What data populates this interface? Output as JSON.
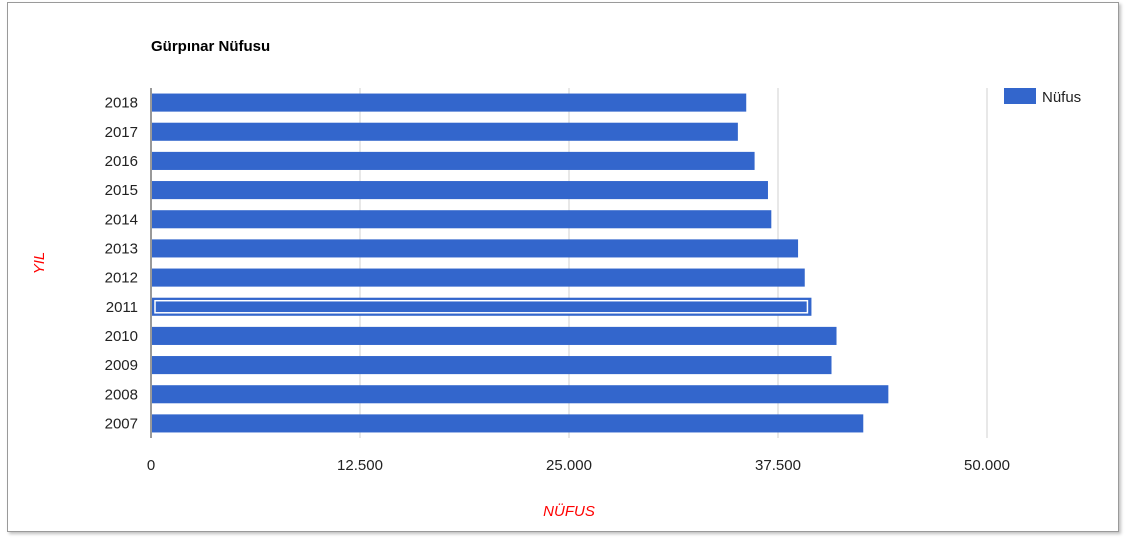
{
  "chart_data": {
    "type": "bar",
    "orientation": "horizontal",
    "title": "Gürpınar Nüfusu",
    "xlabel": "NÜFUS",
    "ylabel": "YIL",
    "categories": [
      "2018",
      "2017",
      "2016",
      "2015",
      "2014",
      "2013",
      "2012",
      "2011",
      "2010",
      "2009",
      "2008",
      "2007"
    ],
    "series": [
      {
        "name": "Nüfus",
        "color": "#3366cc",
        "values": [
          35600,
          35100,
          36100,
          36900,
          37100,
          38700,
          39100,
          39500,
          41000,
          40700,
          44100,
          42600
        ]
      }
    ],
    "xlim": [
      0,
      50000
    ],
    "x_ticks": [
      0,
      12500,
      25000,
      37500,
      50000
    ],
    "x_tick_labels": [
      "0",
      "12.500",
      "25.000",
      "37.500",
      "50.000"
    ],
    "highlighted_category": "2011",
    "axis_title_color": "#ff0000",
    "gridlines": true,
    "legend_position": "top-right"
  }
}
